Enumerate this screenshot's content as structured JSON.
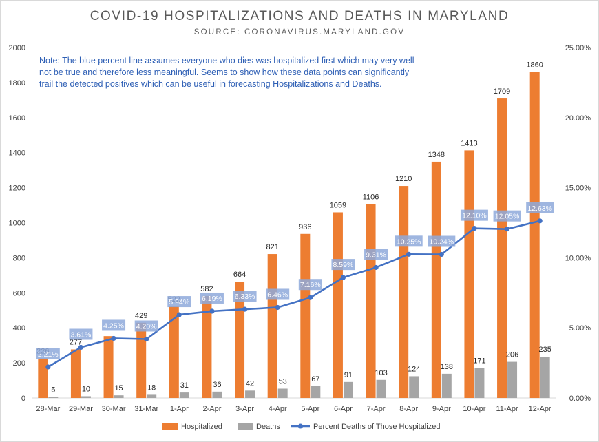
{
  "chart_data": {
    "type": "bar",
    "title": "COVID-19 HOSPITALIZATIONS AND DEATHS IN MARYLAND",
    "subtitle": "SOURCE: CORONAVIRUS.MARYLAND.GOV",
    "note": [
      "Note: The blue percent line assumes everyone who dies was hospitalized first which may very well",
      "not be true and therefore less meaningful. Seems to show how these data points can significantly",
      "trail the detected positives which can be useful in forecasting Hospitalizations and Deaths."
    ],
    "categories": [
      "28-Mar",
      "29-Mar",
      "30-Mar",
      "31-Mar",
      "1-Apr",
      "2-Apr",
      "3-Apr",
      "4-Apr",
      "5-Apr",
      "6-Apr",
      "7-Apr",
      "8-Apr",
      "9-Apr",
      "10-Apr",
      "11-Apr",
      "12-Apr"
    ],
    "series": [
      {
        "name": "Hospitalized",
        "type": "bar",
        "axis": "left",
        "color": "#ed7d31",
        "values": [
          226,
          277,
          353,
          429,
          522,
          582,
          664,
          821,
          936,
          1059,
          1106,
          1210,
          1348,
          1413,
          1709,
          1860
        ],
        "labels": [
          "226",
          "277",
          "",
          "429",
          "522",
          "582",
          "664",
          "821",
          "936",
          "1059",
          "1106",
          "1210",
          "1348",
          "1413",
          "1709",
          "1860"
        ]
      },
      {
        "name": "Deaths",
        "type": "bar",
        "axis": "left",
        "color": "#a5a5a5",
        "values": [
          5,
          10,
          15,
          18,
          31,
          36,
          42,
          53,
          67,
          91,
          103,
          124,
          138,
          171,
          206,
          235
        ],
        "labels": [
          "5",
          "10",
          "15",
          "18",
          "31",
          "36",
          "42",
          "53",
          "67",
          "91",
          "103",
          "124",
          "138",
          "171",
          "206",
          "235"
        ]
      },
      {
        "name": "Percent Deaths of Those Hospitalized",
        "type": "line",
        "axis": "right",
        "color": "#4472c4",
        "values": [
          2.21,
          3.61,
          4.25,
          4.2,
          5.94,
          6.19,
          6.33,
          6.46,
          7.16,
          8.59,
          9.31,
          10.25,
          10.24,
          12.1,
          12.05,
          12.63
        ],
        "labels": [
          "2.21%",
          "3.61%",
          "4.25%",
          "4.20%",
          "5.94%",
          "6.19%",
          "6.33%",
          "6.46%",
          "7.16%",
          "8.59%",
          "9.31%",
          "10.25%",
          "10.24%",
          "12.10%",
          "12.05%",
          "12.63%"
        ]
      }
    ],
    "y_left": {
      "range": [
        0,
        2000
      ],
      "ticks": [
        "0",
        "200",
        "400",
        "600",
        "800",
        "1000",
        "1200",
        "1400",
        "1600",
        "1800",
        "2000"
      ]
    },
    "y_right": {
      "range": [
        0,
        25
      ],
      "ticks": [
        "0.00%",
        "5.00%",
        "10.00%",
        "15.00%",
        "20.00%",
        "25.00%"
      ]
    },
    "grid": false,
    "legend_position": "bottom"
  }
}
